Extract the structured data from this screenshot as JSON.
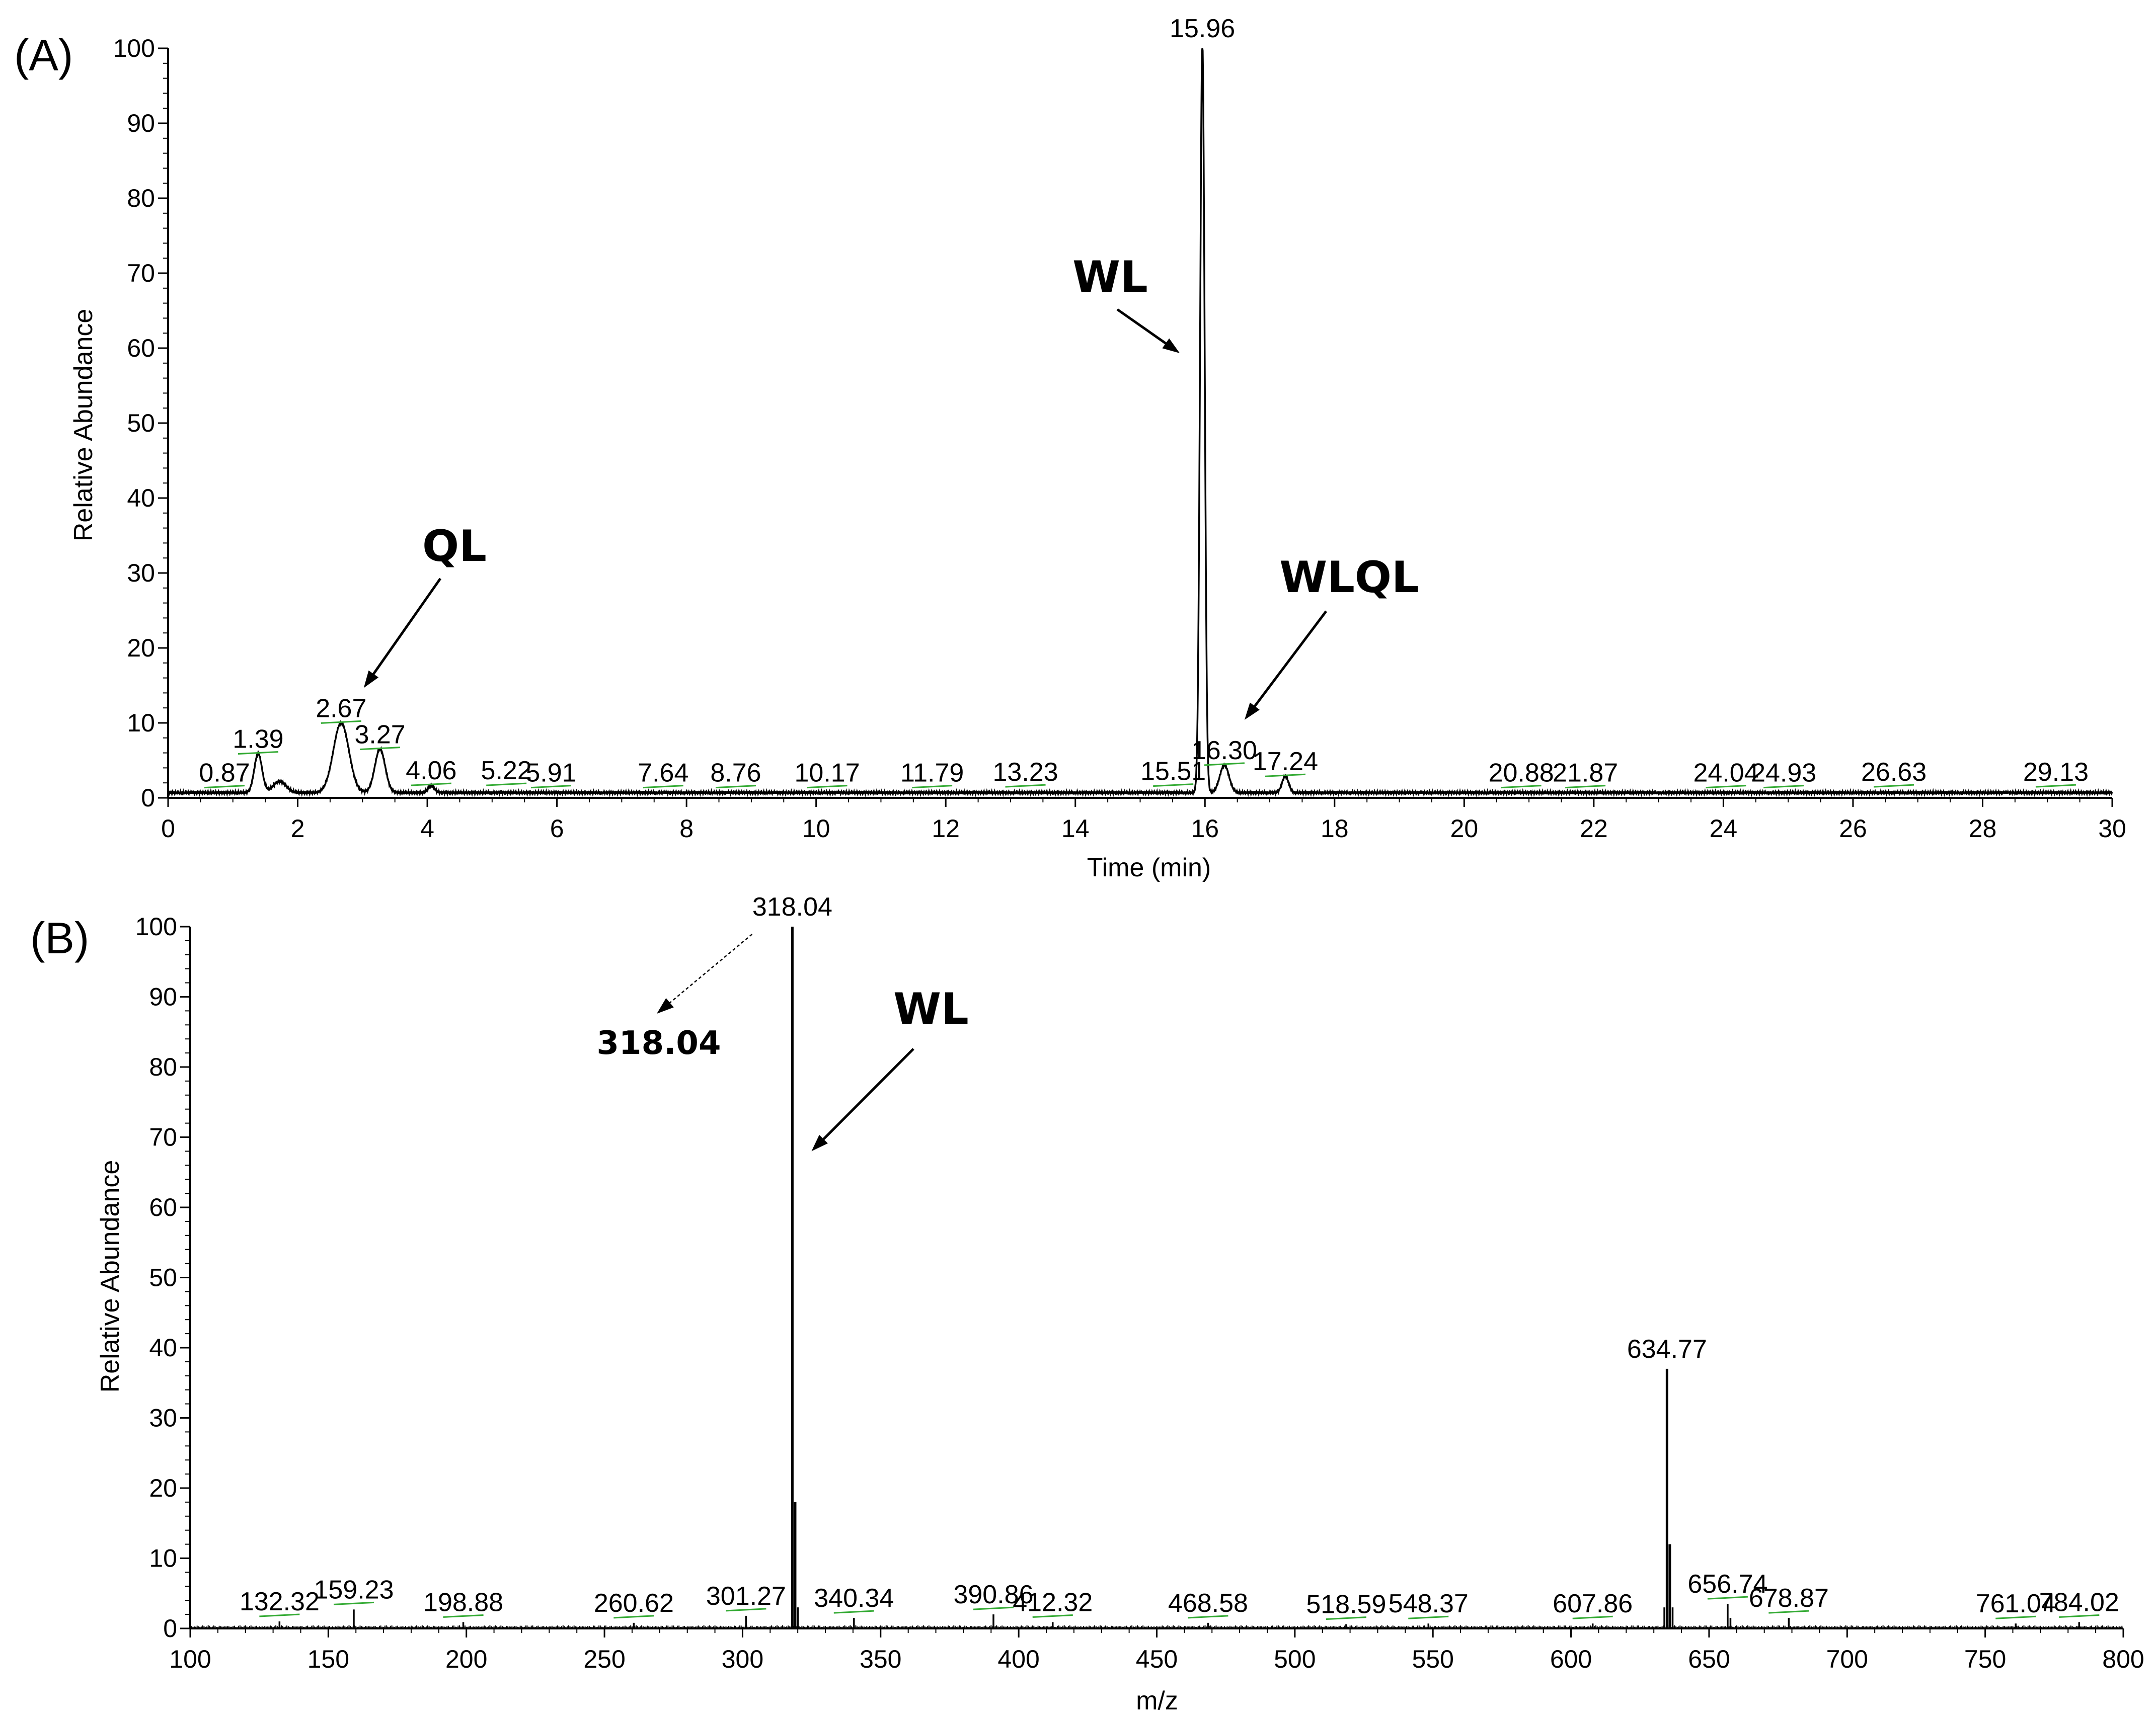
{
  "chart_data": [
    {
      "panel": "(A)",
      "type": "line",
      "xlabel": "Time (min)",
      "ylabel": "Relative Abundance",
      "xlim": [
        0,
        30
      ],
      "ylim": [
        0,
        100
      ],
      "xticks": [
        0,
        2,
        4,
        6,
        8,
        10,
        12,
        14,
        16,
        18,
        20,
        22,
        24,
        26,
        28,
        30
      ],
      "yticks": [
        0,
        10,
        20,
        30,
        40,
        50,
        60,
        70,
        80,
        90,
        100
      ],
      "baseline": 0.7,
      "peaks": [
        {
          "x": 1.39,
          "y": 5.2,
          "w": 0.06
        },
        {
          "x": 1.72,
          "y": 1.5,
          "w": 0.1
        },
        {
          "x": 2.67,
          "y": 9.3,
          "w": 0.12
        },
        {
          "x": 3.27,
          "y": 5.8,
          "w": 0.08
        },
        {
          "x": 4.06,
          "y": 0.9,
          "w": 0.05
        },
        {
          "x": 15.96,
          "y": 100,
          "w": 0.035
        },
        {
          "x": 16.3,
          "y": 3.7,
          "w": 0.07
        },
        {
          "x": 17.24,
          "y": 2.2,
          "w": 0.05
        }
      ],
      "peak_labels": [
        {
          "text": "0.87",
          "x": 0.87,
          "y": 0.7
        },
        {
          "text": "1.39",
          "x": 1.39,
          "y": 5.2
        },
        {
          "text": "2.67",
          "x": 2.67,
          "y": 9.3
        },
        {
          "text": "3.27",
          "x": 3.27,
          "y": 5.8
        },
        {
          "text": "4.06",
          "x": 4.06,
          "y": 1.0
        },
        {
          "text": "5.22",
          "x": 5.22,
          "y": 1.0
        },
        {
          "text": "5.91",
          "x": 5.91,
          "y": 0.7
        },
        {
          "text": "7.64",
          "x": 7.64,
          "y": 0.7
        },
        {
          "text": "8.76",
          "x": 8.76,
          "y": 0.7
        },
        {
          "text": "10.17",
          "x": 10.17,
          "y": 0.7
        },
        {
          "text": "11.79",
          "x": 11.79,
          "y": 0.7
        },
        {
          "text": "13.23",
          "x": 13.23,
          "y": 0.8
        },
        {
          "text": "15.51",
          "x": 15.51,
          "y": 0.9
        },
        {
          "text": "15.96",
          "x": 15.96,
          "y": 100
        },
        {
          "text": "16.30",
          "x": 16.3,
          "y": 3.7
        },
        {
          "text": "17.24",
          "x": 17.24,
          "y": 2.2
        },
        {
          "text": "20.88",
          "x": 20.88,
          "y": 0.7
        },
        {
          "text": "21.87",
          "x": 21.87,
          "y": 0.7
        },
        {
          "text": "24.04",
          "x": 24.04,
          "y": 0.7
        },
        {
          "text": "24.93",
          "x": 24.93,
          "y": 0.7
        },
        {
          "text": "26.63",
          "x": 26.63,
          "y": 0.8
        },
        {
          "text": "29.13",
          "x": 29.13,
          "y": 0.8
        }
      ],
      "annotations": [
        {
          "text": "QL",
          "x": 2.67,
          "y": 9.3
        },
        {
          "text": "WL",
          "x": 15.96,
          "y": 60
        },
        {
          "text": "WLQL",
          "x": 16.3,
          "y": 3.7
        }
      ]
    },
    {
      "panel": "(B)",
      "type": "bar",
      "xlabel": "m/z",
      "ylabel": "Relative Abundance",
      "xlim": [
        100,
        800
      ],
      "ylim": [
        0,
        100
      ],
      "xticks": [
        100,
        150,
        200,
        250,
        300,
        350,
        400,
        450,
        500,
        550,
        600,
        650,
        700,
        750,
        800
      ],
      "yticks": [
        0,
        10,
        20,
        30,
        40,
        50,
        60,
        70,
        80,
        90,
        100
      ],
      "peaks": [
        {
          "x": 132.32,
          "y": 1.0
        },
        {
          "x": 159.23,
          "y": 2.7
        },
        {
          "x": 198.88,
          "y": 0.9
        },
        {
          "x": 260.62,
          "y": 0.8
        },
        {
          "x": 301.27,
          "y": 1.8
        },
        {
          "x": 318.04,
          "y": 100
        },
        {
          "x": 319.05,
          "y": 18
        },
        {
          "x": 320.05,
          "y": 3
        },
        {
          "x": 340.34,
          "y": 1.5
        },
        {
          "x": 390.86,
          "y": 2.0
        },
        {
          "x": 412.32,
          "y": 0.9
        },
        {
          "x": 468.58,
          "y": 0.8
        },
        {
          "x": 518.59,
          "y": 0.6
        },
        {
          "x": 548.37,
          "y": 0.7
        },
        {
          "x": 607.86,
          "y": 0.7
        },
        {
          "x": 633.8,
          "y": 3
        },
        {
          "x": 634.77,
          "y": 37
        },
        {
          "x": 635.78,
          "y": 12
        },
        {
          "x": 636.8,
          "y": 3
        },
        {
          "x": 656.74,
          "y": 3.5
        },
        {
          "x": 657.75,
          "y": 1.5
        },
        {
          "x": 678.87,
          "y": 1.5
        },
        {
          "x": 761.04,
          "y": 0.7
        },
        {
          "x": 784.02,
          "y": 0.9
        }
      ],
      "peak_labels": [
        {
          "text": "132.32",
          "x": 132.32,
          "y": 1.0
        },
        {
          "text": "159.23",
          "x": 159.23,
          "y": 2.7
        },
        {
          "text": "198.88",
          "x": 198.88,
          "y": 0.9
        },
        {
          "text": "260.62",
          "x": 260.62,
          "y": 0.8
        },
        {
          "text": "301.27",
          "x": 301.27,
          "y": 1.8
        },
        {
          "text": "318.04",
          "x": 318.04,
          "y": 100
        },
        {
          "text": "340.34",
          "x": 340.34,
          "y": 1.5
        },
        {
          "text": "390.86",
          "x": 390.86,
          "y": 2.0
        },
        {
          "text": "412.32",
          "x": 412.32,
          "y": 0.9
        },
        {
          "text": "468.58",
          "x": 468.58,
          "y": 0.8
        },
        {
          "text": "518.59",
          "x": 518.59,
          "y": 0.6
        },
        {
          "text": "548.37",
          "x": 548.37,
          "y": 0.7
        },
        {
          "text": "607.86",
          "x": 607.86,
          "y": 0.7
        },
        {
          "text": "634.77",
          "x": 634.77,
          "y": 37
        },
        {
          "text": "656.74",
          "x": 656.74,
          "y": 3.5
        },
        {
          "text": "678.87",
          "x": 678.87,
          "y": 1.5
        },
        {
          "text": "761.04",
          "x": 761.04,
          "y": 0.7
        },
        {
          "text": "784.02",
          "x": 784.02,
          "y": 0.9
        }
      ],
      "annotations": [
        {
          "text": "WL",
          "x": 318.04,
          "y": 68
        },
        {
          "text": "318.04",
          "x": 318.04,
          "y": 100
        }
      ]
    }
  ],
  "colors": {
    "line": "#000000",
    "peak_marker": "#33aa33",
    "axis": "#000000",
    "background": "#ffffff"
  }
}
